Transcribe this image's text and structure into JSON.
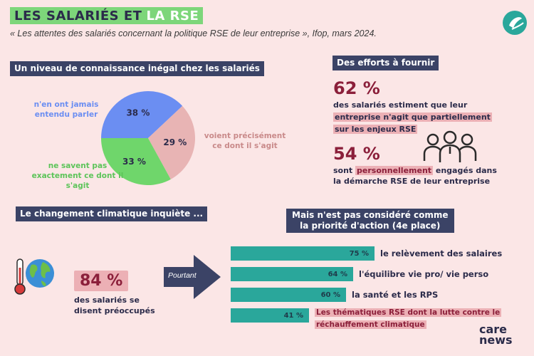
{
  "header": {
    "title_part1": "LES SALARIÉS ET",
    "title_part2": "LA RSE",
    "subtitle": "« Les attentes des salariés concernant la politique RSE de leur entreprise », Ifop, mars 2024."
  },
  "section1": {
    "heading": "Un niveau de connaissance inégal chez les salariés",
    "chart_data": {
      "type": "pie",
      "categories": [
        "n'en ont jamais entendu parler",
        "voient précisément ce dont il s'agit",
        "ne savent pas exactement ce dont il s'agit"
      ],
      "values": [
        38,
        29,
        33
      ],
      "value_labels": [
        "38 %",
        "29 %",
        "33 %"
      ],
      "colors": [
        "#6b8ef2",
        "#e8b4b4",
        "#6fd66b"
      ]
    },
    "label_never_l1": "n'en ont jamais",
    "label_never_l2": "entendu parler",
    "label_precise_l1": "voient précisément",
    "label_precise_l2": "ce dont il s'agit",
    "label_unsure_l1": "ne savent pas",
    "label_unsure_l2": "exactement ce dont il",
    "label_unsure_l3": "s'agit"
  },
  "section2": {
    "heading": "Des efforts à fournir",
    "stat1_pct": "62 %",
    "stat1_line1": "des salariés estiment que leur",
    "stat1_line2_hl": "entreprise n'agit que partiellement",
    "stat1_line3_hl": "sur les enjeux RSE",
    "stat2_pct": "54 %",
    "stat2_pre": "sont",
    "stat2_hl": "personnellement",
    "stat2_post": "engagés dans",
    "stat2_line2": "la démarche RSE de leur entreprise"
  },
  "section3": {
    "heading": "Le changement climatique inquiète ...",
    "pct": "84 %",
    "line1": "des salariés se",
    "line2": "disent préoccupés",
    "arrow_text": "Pourtant"
  },
  "section4": {
    "heading_l1": "Mais n'est pas considéré comme",
    "heading_l2": "la priorité d'action (4e place)",
    "bars": [
      {
        "value": 75,
        "value_label": "75 %",
        "label": "le relèvement des salaires"
      },
      {
        "value": 64,
        "value_label": "64 %",
        "label": "l'équilibre vie pro/ vie perso"
      },
      {
        "value": 60,
        "value_label": "60 %",
        "label": "la santé et les RPS"
      },
      {
        "value": 41,
        "value_label": "41 %",
        "label_l1": "Les thématiques RSE dont la lutte contre le",
        "label_l2": "réchauffement climatique"
      }
    ]
  },
  "brand": {
    "line1": "care",
    "line2": "news",
    "accent": "#2aa79b"
  }
}
